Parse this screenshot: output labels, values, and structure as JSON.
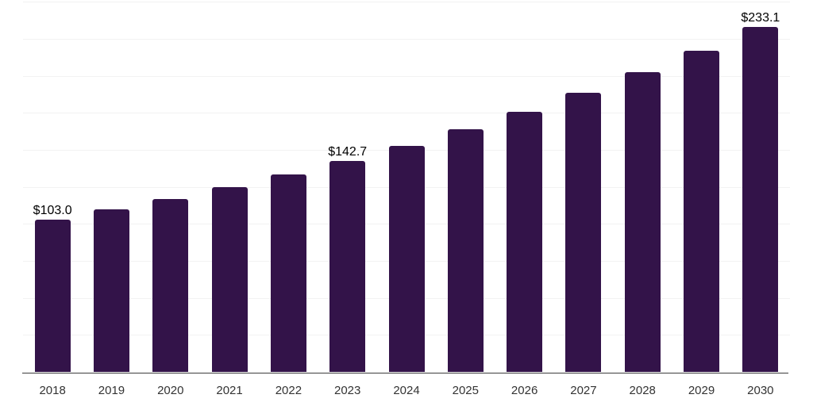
{
  "chart_data": {
    "type": "bar",
    "title": "",
    "xlabel": "",
    "ylabel": "",
    "categories": [
      "2018",
      "2019",
      "2020",
      "2021",
      "2022",
      "2023",
      "2024",
      "2025",
      "2026",
      "2027",
      "2028",
      "2029",
      "2030"
    ],
    "values": [
      103.0,
      109.9,
      117.3,
      125.2,
      133.7,
      142.7,
      153.1,
      164.2,
      176.1,
      188.9,
      202.6,
      217.3,
      233.1
    ],
    "value_labels": {
      "2018": "$103.0",
      "2023": "$142.7",
      "2030": "$233.1"
    },
    "ylim": [
      0,
      250
    ],
    "grid_step": 25,
    "grid": true,
    "legend": false,
    "y_axis_tick_labels_visible": false,
    "x_axis_line_visible": true
  },
  "colors": {
    "bar": "#331349",
    "gridline": "#f2f2f2",
    "axis_line": "#3d3d3d",
    "tick_label": "#333333",
    "value_label": "#000000",
    "background": "#ffffff"
  }
}
